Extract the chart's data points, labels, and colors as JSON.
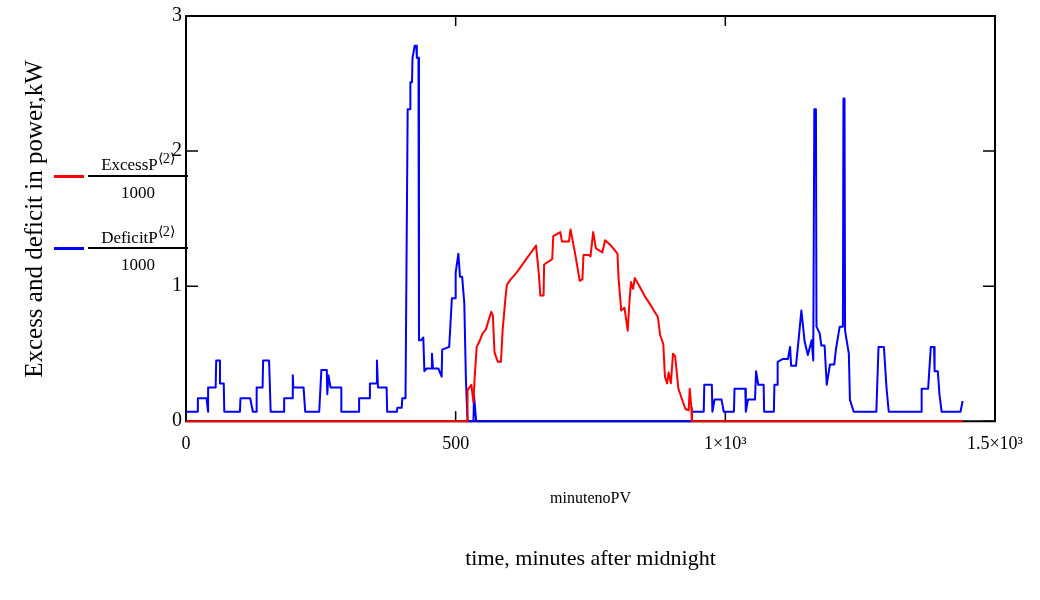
{
  "chart_data": {
    "type": "line",
    "xlabel": "minutenoPV",
    "ylabel": "Excess and deficit in power,kW",
    "annotations": [
      "time, minutes after midnight"
    ],
    "xlim": [
      0,
      1500
    ],
    "ylim": [
      0,
      3
    ],
    "xticks": [
      0,
      500,
      {
        "value": 1000,
        "label": "1×10³"
      },
      {
        "value": 1500,
        "label": "1.5×10³"
      }
    ],
    "yticks": [
      0,
      1,
      2,
      3
    ],
    "legend": "left",
    "series": [
      {
        "name": "ExcessP$^{⟨2⟩}$ 1000",
        "color": "#ff0000",
        "x": [
          0,
          522,
          522,
          529,
          533,
          535,
          539,
          544,
          550,
          556,
          566,
          569,
          572,
          578,
          584,
          587,
          592,
          595,
          602,
          613,
          638,
          649,
          654,
          657,
          663,
          664,
          679,
          681,
          694,
          697,
          710,
          713,
          722,
          730,
          735,
          737,
          747,
          750,
          755,
          760,
          772,
          777,
          788,
          800,
          802,
          807,
          813,
          819,
          822,
          825,
          829,
          832,
          838,
          850,
          863,
          875,
          879,
          885,
          888,
          892,
          895,
          899,
          903,
          907,
          913,
          919,
          926,
          932,
          934,
          937,
          938,
          1440
        ],
        "values": [
          0,
          0,
          0.23,
          0.27,
          0.14,
          0.31,
          0.55,
          0.59,
          0.65,
          0.68,
          0.81,
          0.78,
          0.51,
          0.44,
          0.44,
          0.67,
          0.9,
          1.01,
          1.05,
          1.1,
          1.24,
          1.3,
          1.1,
          0.93,
          0.93,
          1.16,
          1.2,
          1.37,
          1.4,
          1.33,
          1.33,
          1.42,
          1.23,
          1.04,
          1.05,
          1.23,
          1.23,
          1.22,
          1.4,
          1.28,
          1.25,
          1.34,
          1.3,
          1.24,
          1.06,
          0.82,
          0.84,
          0.67,
          0.87,
          1.03,
          0.98,
          1.06,
          1.02,
          0.93,
          0.85,
          0.77,
          0.64,
          0.57,
          0.33,
          0.28,
          0.36,
          0.28,
          0.5,
          0.48,
          0.24,
          0.17,
          0.09,
          0.08,
          0.24,
          0.1,
          0,
          0
        ]
      },
      {
        "name": "DeficitP$^{⟨2⟩}$ 1000",
        "color": "#0000ff",
        "x": [
          0,
          22,
          22,
          38,
          41,
          41,
          55,
          56,
          63,
          63,
          70,
          71,
          100,
          101,
          119,
          124,
          131,
          131,
          142,
          143,
          154,
          157,
          182,
          182,
          197,
          198,
          199,
          218,
          221,
          247,
          251,
          261,
          262,
          264,
          268,
          288,
          288,
          321,
          321,
          341,
          341,
          353,
          354,
          356,
          372,
          373,
          391,
          392,
          400,
          401,
          407,
          411,
          416,
          416,
          419,
          420,
          424,
          427,
          428,
          431,
          432,
          436,
          440,
          442,
          446,
          455,
          456,
          458,
          468,
          474,
          475,
          488,
          493,
          499,
          500,
          505,
          508,
          512,
          516,
          519,
          522,
          533,
          534,
          538,
          938,
          938,
          960,
          961,
          975,
          976,
          980,
          993,
          997,
          1016,
          1017,
          1037,
          1038,
          1042,
          1055,
          1057,
          1061,
          1071,
          1072,
          1090,
          1091,
          1096,
          1097,
          1106,
          1116,
          1120,
          1122,
          1131,
          1136,
          1141,
          1147,
          1153,
          1160,
          1163,
          1165,
          1168,
          1169,
          1175,
          1178,
          1184,
          1188,
          1194,
          1202,
          1205,
          1212,
          1218,
          1219,
          1221,
          1222,
          1229,
          1231,
          1238,
          1280,
          1284,
          1294,
          1299,
          1303,
          1363,
          1364,
          1376,
          1381,
          1387,
          1388,
          1394,
          1397,
          1401,
          1436,
          1440
        ],
        "values": [
          0.07,
          0.07,
          0.17,
          0.17,
          0.07,
          0.25,
          0.25,
          0.45,
          0.45,
          0.28,
          0.28,
          0.07,
          0.07,
          0.17,
          0.17,
          0.07,
          0.07,
          0.25,
          0.25,
          0.45,
          0.45,
          0.07,
          0.07,
          0.17,
          0.17,
          0.34,
          0.25,
          0.25,
          0.07,
          0.07,
          0.38,
          0.38,
          0.2,
          0.34,
          0.25,
          0.25,
          0.07,
          0.07,
          0.17,
          0.17,
          0.28,
          0.28,
          0.45,
          0.25,
          0.25,
          0.07,
          0.07,
          0.1,
          0.1,
          0.17,
          0.17,
          2.31,
          2.31,
          2.51,
          2.51,
          2.69,
          2.78,
          2.78,
          2.69,
          2.69,
          0.6,
          0.6,
          0.62,
          0.37,
          0.39,
          0.39,
          0.5,
          0.39,
          0.39,
          0.33,
          0.53,
          0.55,
          0.91,
          0.91,
          1.1,
          1.24,
          1.07,
          1.07,
          0.875,
          0.31,
          0,
          0,
          0.19,
          0,
          0,
          0.07,
          0.07,
          0.27,
          0.27,
          0.07,
          0.16,
          0.16,
          0.07,
          0.07,
          0.24,
          0.24,
          0.07,
          0.16,
          0.16,
          0.37,
          0.27,
          0.27,
          0.07,
          0.07,
          0.27,
          0.27,
          0.44,
          0.46,
          0.46,
          0.55,
          0.41,
          0.41,
          0.61,
          0.82,
          0.59,
          0.49,
          0.6,
          0.45,
          2.31,
          2.31,
          0.7,
          0.65,
          0.56,
          0.56,
          0.27,
          0.42,
          0.42,
          0.53,
          0.7,
          0.7,
          2.39,
          2.39,
          0.67,
          0.5,
          0.16,
          0.07,
          0.07,
          0.55,
          0.55,
          0.24,
          0.07,
          0.07,
          0.24,
          0.24,
          0.55,
          0.55,
          0.37,
          0.37,
          0.2,
          0.07,
          0.07,
          0.15
        ]
      }
    ]
  }
}
